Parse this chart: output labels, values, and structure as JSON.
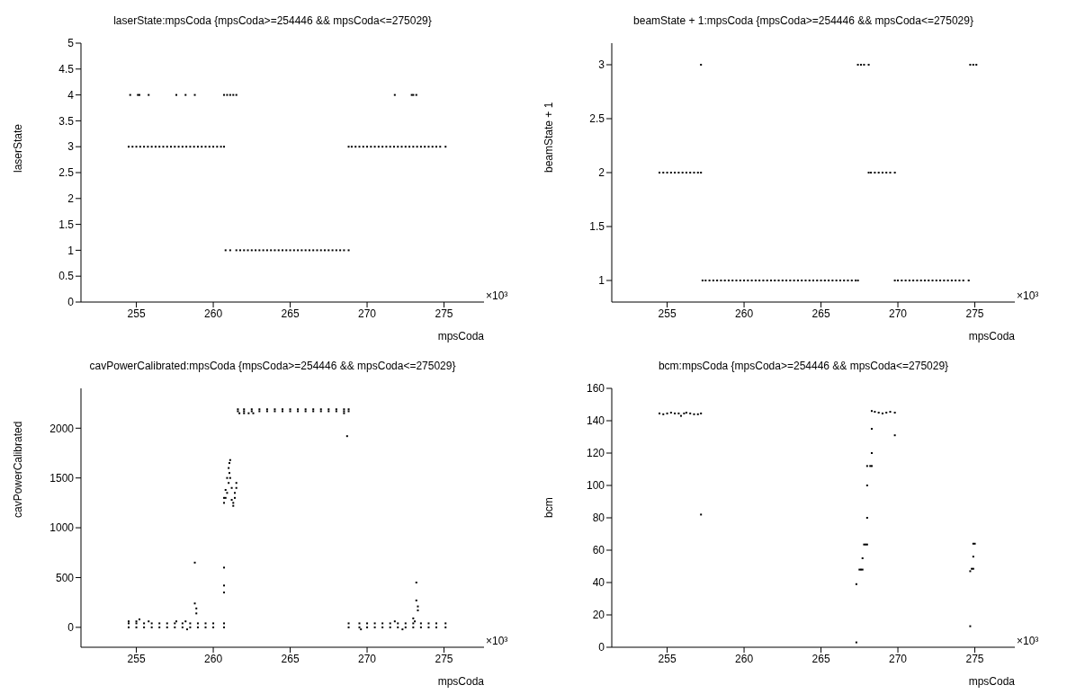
{
  "chart_data": [
    {
      "type": "scatter",
      "title": "laserState:mpsCoda {mpsCoda>=254446 && mpsCoda<=275029}",
      "xlabel": "mpsCoda",
      "ylabel": "laserState",
      "annotations": [
        "×10³"
      ],
      "xlim": [
        251.4,
        277.6
      ],
      "xticks": [
        255,
        260,
        265,
        270,
        275
      ],
      "ylim": [
        0,
        5
      ],
      "yticks": [
        0,
        0.5,
        1,
        1.5,
        2,
        2.5,
        3,
        3.5,
        4,
        4.5,
        5
      ],
      "grid": false,
      "marker": "square",
      "series": [
        {
          "color": "#000000",
          "x": [
            254.5,
            254.75,
            255,
            255.25,
            255.5,
            255.75,
            256,
            256.25,
            256.5,
            256.75,
            257,
            257.25,
            257.5,
            257.75,
            258,
            258.25,
            258.5,
            258.75,
            259,
            259.25,
            259.5,
            259.75,
            260,
            260.25,
            260.5,
            260.7,
            254.6,
            255.1,
            255.2,
            255.8,
            257.6,
            258.2,
            258.8,
            260.7,
            260.9,
            261.1,
            261.3,
            261.5,
            271.8,
            272.9,
            273.0,
            273.2,
            260.8,
            261.1,
            261.5,
            261.75,
            262,
            262.25,
            262.5,
            262.75,
            263,
            263.25,
            263.5,
            263.75,
            264,
            264.25,
            264.5,
            264.75,
            265,
            265.25,
            265.5,
            265.75,
            266,
            266.25,
            266.5,
            266.75,
            267,
            267.25,
            267.5,
            267.75,
            268,
            268.25,
            268.5,
            268.8,
            268.8,
            269,
            269.25,
            269.5,
            269.75,
            270,
            270.25,
            270.5,
            270.75,
            271,
            271.25,
            271.5,
            271.75,
            272,
            272.25,
            272.5,
            272.75,
            273,
            273.25,
            273.5,
            273.75,
            274,
            274.25,
            274.5,
            274.75,
            275.1
          ],
          "values": [
            3,
            3,
            3,
            3,
            3,
            3,
            3,
            3,
            3,
            3,
            3,
            3,
            3,
            3,
            3,
            3,
            3,
            3,
            3,
            3,
            3,
            3,
            3,
            3,
            3,
            3,
            4,
            4,
            4,
            4,
            4,
            4,
            4,
            4,
            4,
            4,
            4,
            4,
            4,
            4,
            4,
            4,
            1,
            1,
            1,
            1,
            1,
            1,
            1,
            1,
            1,
            1,
            1,
            1,
            1,
            1,
            1,
            1,
            1,
            1,
            1,
            1,
            1,
            1,
            1,
            1,
            1,
            1,
            1,
            1,
            1,
            1,
            1,
            1,
            3,
            3,
            3,
            3,
            3,
            3,
            3,
            3,
            3,
            3,
            3,
            3,
            3,
            3,
            3,
            3,
            3,
            3,
            3,
            3,
            3,
            3,
            3,
            3,
            3,
            3
          ]
        }
      ]
    },
    {
      "type": "scatter",
      "title": "beamState + 1:mpsCoda {mpsCoda>=254446 && mpsCoda<=275029}",
      "xlabel": "mpsCoda",
      "ylabel": "beamState + 1",
      "annotations": [
        "×10³"
      ],
      "xlim": [
        251.4,
        277.6
      ],
      "xticks": [
        255,
        260,
        265,
        270,
        275
      ],
      "ylim": [
        0.8,
        3.2
      ],
      "yticks": [
        1,
        1.5,
        2,
        2.5,
        3
      ],
      "grid": false,
      "marker": "square",
      "series": [
        {
          "color": "#000000",
          "x": [
            254.5,
            254.75,
            255,
            255.25,
            255.5,
            255.75,
            256,
            256.25,
            256.5,
            256.75,
            257,
            257.2,
            257.2,
            267.4,
            267.6,
            267.8,
            268.1,
            274.7,
            274.9,
            275.1,
            257.3,
            257.5,
            257.75,
            258,
            258.25,
            258.5,
            258.75,
            259,
            259.25,
            259.5,
            259.75,
            260,
            260.25,
            260.5,
            260.75,
            261,
            261.25,
            261.5,
            261.75,
            262,
            262.25,
            262.5,
            262.75,
            263,
            263.25,
            263.5,
            263.75,
            264,
            264.25,
            264.5,
            264.75,
            265,
            265.25,
            265.5,
            265.75,
            266,
            266.25,
            266.5,
            266.75,
            267,
            267.25,
            267.4,
            269.8,
            270,
            270.25,
            270.5,
            270.75,
            271,
            271.25,
            271.5,
            271.75,
            272,
            272.25,
            272.5,
            272.75,
            273,
            273.25,
            273.5,
            273.75,
            274,
            274.25,
            274.6,
            268.1,
            268.25,
            268.5,
            268.75,
            269,
            269.25,
            269.5,
            269.8
          ],
          "values": [
            2,
            2,
            2,
            2,
            2,
            2,
            2,
            2,
            2,
            2,
            2,
            2,
            3,
            3,
            3,
            3,
            3,
            3,
            3,
            3,
            1,
            1,
            1,
            1,
            1,
            1,
            1,
            1,
            1,
            1,
            1,
            1,
            1,
            1,
            1,
            1,
            1,
            1,
            1,
            1,
            1,
            1,
            1,
            1,
            1,
            1,
            1,
            1,
            1,
            1,
            1,
            1,
            1,
            1,
            1,
            1,
            1,
            1,
            1,
            1,
            1,
            1,
            1,
            1,
            1,
            1,
            1,
            1,
            1,
            1,
            1,
            1,
            1,
            1,
            1,
            1,
            1,
            1,
            1,
            1,
            1,
            1,
            2,
            2,
            2,
            2,
            2,
            2,
            2,
            2
          ]
        }
      ]
    },
    {
      "type": "scatter",
      "title": "cavPowerCalibrated:mpsCoda {mpsCoda>=254446 && mpsCoda<=275029}",
      "xlabel": "mpsCoda",
      "ylabel": "cavPowerCalibrated",
      "annotations": [
        "×10³"
      ],
      "xlim": [
        251.4,
        277.6
      ],
      "xticks": [
        255,
        260,
        265,
        270,
        275
      ],
      "ylim": [
        -200,
        2400
      ],
      "yticks": [
        0,
        500,
        1000,
        1500,
        2000
      ],
      "grid": false,
      "marker": "square",
      "series": [
        {
          "color": "#000000",
          "x": [
            254.5,
            255,
            255.5,
            256,
            256.5,
            257,
            257.5,
            258,
            258.5,
            259,
            259.5,
            260,
            260.7,
            254.5,
            255,
            255.5,
            256,
            256.5,
            257,
            257.5,
            258,
            258.5,
            259,
            259.5,
            260,
            260.7,
            268.8,
            269.5,
            270,
            270.5,
            271,
            271.5,
            272,
            272.5,
            273,
            273.5,
            274,
            274.5,
            275.1,
            268.8,
            269.5,
            270,
            270.5,
            271,
            271.5,
            272,
            272.5,
            273,
            273.5,
            274,
            274.5,
            275.1,
            261.6,
            262,
            262.5,
            263,
            263.5,
            264,
            264.5,
            265,
            265.5,
            266,
            266.5,
            267,
            267.5,
            268,
            268.5,
            268.8,
            261.6,
            262,
            262.5,
            263,
            263.5,
            264,
            264.5,
            265,
            265.5,
            266,
            266.5,
            267,
            267.5,
            268,
            268.5,
            268.8,
            261.7,
            262,
            262.3,
            262.6,
            260.7,
            260.8,
            260.9,
            261.0,
            261.05,
            261.1,
            261.2,
            261.3,
            261.4,
            261.5,
            260.7,
            260.8,
            260.9,
            261.0,
            261.05,
            261.1,
            261.2,
            261.3,
            261.4,
            261.5,
            254.5,
            255.0,
            255.2,
            255.8,
            257.6,
            258.2,
            258.3,
            258.8,
            258.8,
            258.9,
            258.9,
            260.7,
            260.7,
            260.7,
            268.7,
            268.5,
            269.6,
            271.8,
            272.3,
            273.0,
            273.1,
            273.2,
            273.2,
            273.3,
            273.3
          ],
          "values": [
            0,
            0,
            0,
            0,
            0,
            0,
            0,
            0,
            0,
            0,
            0,
            0,
            0,
            40,
            40,
            40,
            40,
            40,
            40,
            40,
            40,
            40,
            40,
            40,
            40,
            40,
            0,
            0,
            0,
            0,
            0,
            0,
            0,
            0,
            0,
            0,
            0,
            0,
            0,
            40,
            40,
            40,
            40,
            40,
            40,
            40,
            40,
            40,
            40,
            40,
            40,
            40,
            2170,
            2170,
            2170,
            2170,
            2170,
            2170,
            2170,
            2170,
            2170,
            2170,
            2170,
            2170,
            2170,
            2170,
            2170,
            2170,
            2190,
            2190,
            2190,
            2190,
            2190,
            2190,
            2190,
            2190,
            2190,
            2190,
            2190,
            2190,
            2190,
            2190,
            2190,
            2190,
            2150,
            2150,
            2150,
            2150,
            1250,
            1300,
            1350,
            1450,
            1550,
            1680,
            1400,
            1220,
            1300,
            1450,
            1300,
            1380,
            1500,
            1600,
            1650,
            1500,
            1280,
            1250,
            1350,
            1400,
            60,
            60,
            80,
            60,
            60,
            60,
            -20,
            650,
            240,
            190,
            140,
            600,
            420,
            350,
            1920,
            2150,
            -20,
            60,
            -20,
            90,
            60,
            270,
            450,
            210,
            170
          ]
        }
      ]
    },
    {
      "type": "scatter",
      "title": "bcm:mpsCoda {mpsCoda>=254446 && mpsCoda<=275029}",
      "xlabel": "mpsCoda",
      "ylabel": "bcm",
      "annotations": [
        "×10³"
      ],
      "xlim": [
        251.4,
        277.6
      ],
      "xticks": [
        255,
        260,
        265,
        270,
        275
      ],
      "ylim": [
        0,
        160
      ],
      "yticks": [
        0,
        20,
        40,
        60,
        80,
        100,
        120,
        140,
        160
      ],
      "grid": false,
      "marker": "square",
      "series": [
        {
          "color": "#000000",
          "x": [
            254.5,
            254.75,
            255,
            255.25,
            255.5,
            255.75,
            255.9,
            256.1,
            256.25,
            256.5,
            256.75,
            257,
            257.2,
            257.2,
            267.3,
            267.3,
            267.5,
            267.6,
            267.7,
            267.7,
            267.8,
            267.9,
            268.0,
            268.0,
            268.0,
            268.0,
            268.2,
            268.3,
            268.3,
            268.3,
            268.3,
            268.5,
            268.75,
            269,
            269.25,
            269.5,
            269.8,
            269.8,
            274.7,
            274.7,
            274.8,
            274.9,
            274.9,
            274.9,
            275.0
          ],
          "values": [
            144.5,
            144,
            144.5,
            145,
            144.5,
            144.5,
            143,
            144.5,
            145,
            144.5,
            144,
            144,
            144.5,
            82,
            3,
            39,
            48,
            48,
            48,
            55,
            63.5,
            63.5,
            63.5,
            80,
            100,
            112,
            112,
            112,
            120,
            135,
            146,
            145.5,
            145,
            144.5,
            145,
            145.5,
            145,
            131,
            13,
            47,
            48.5,
            48.5,
            56,
            64,
            64
          ]
        }
      ]
    }
  ]
}
